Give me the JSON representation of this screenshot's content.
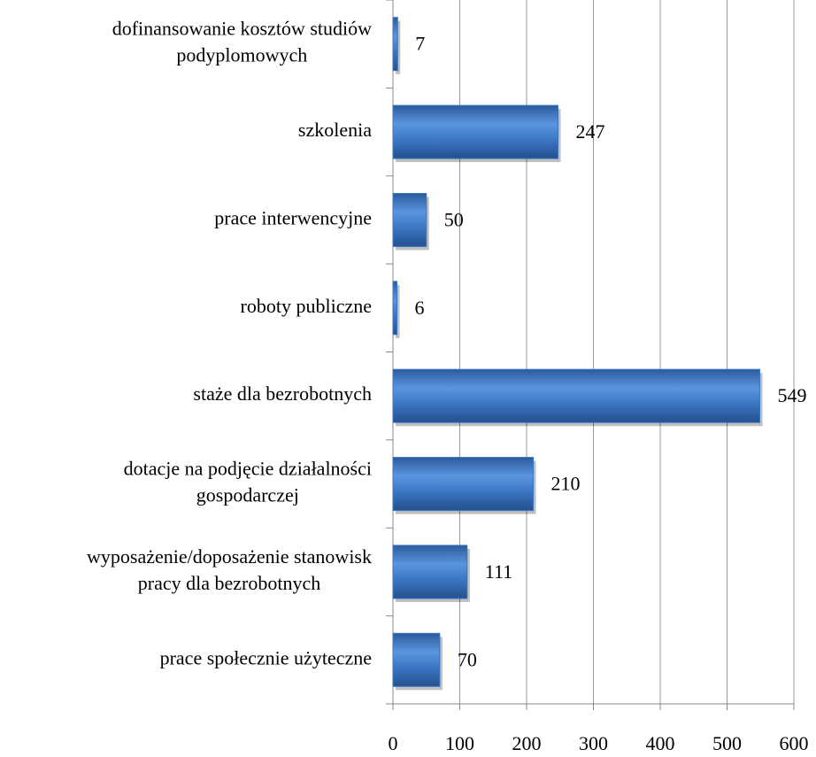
{
  "chart_data": {
    "type": "bar",
    "orientation": "horizontal",
    "categories": [
      [
        "dofinansowanie kosztów studiów",
        "podyplomowych"
      ],
      [
        "szkolenia"
      ],
      [
        "prace interwencyjne"
      ],
      [
        "roboty publiczne"
      ],
      [
        "staże dla bezrobotnych"
      ],
      [
        "dotacje na podjęcie działalności",
        "gospodarczej"
      ],
      [
        "wyposażenie/doposażenie stanowisk",
        "pracy dla bezrobotnych"
      ],
      [
        "prace społecznie użyteczne"
      ]
    ],
    "values": [
      7,
      247,
      50,
      6,
      549,
      210,
      111,
      70
    ],
    "color": "#3a74c4",
    "xlim": [
      0,
      600
    ],
    "xticks": [
      0,
      100,
      200,
      300,
      400,
      500,
      600
    ],
    "grid": true
  }
}
